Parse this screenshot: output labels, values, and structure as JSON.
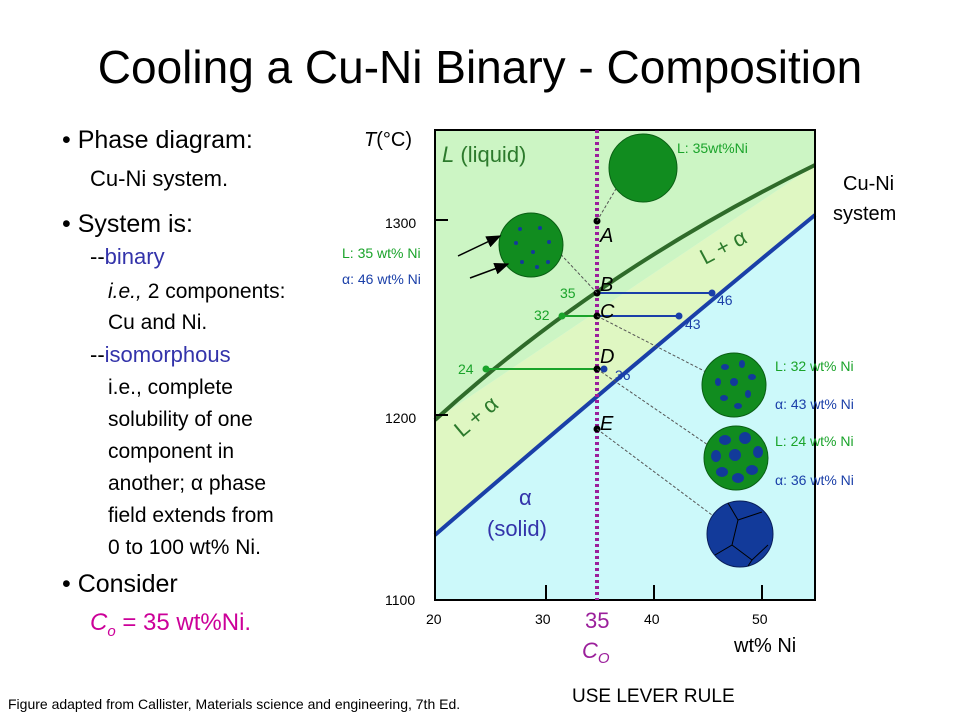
{
  "title": "Cooling a Cu-Ni Binary - Composition",
  "left": {
    "b1": "• Phase diagram:",
    "b1_sub": "Cu-Ni system.",
    "b2": "• System is:",
    "binary_dash": "--",
    "binary_word": "binary",
    "binary_ie_pre": "i.e.,",
    "binary_ie_rest": " 2 components:",
    "binary_line2": "Cu and Ni.",
    "iso_dash": "--",
    "iso_word": "isomorphous",
    "iso_lines": [
      "i.e., complete",
      "solubility of one",
      "component in",
      "another; α phase",
      "field extends from",
      "0 to 100 wt% Ni."
    ],
    "b3": "• Consider",
    "co_text": "C",
    "co_sub": "o",
    "co_rest": " = 35 wt%Ni."
  },
  "chart_data": {
    "type": "phase-diagram",
    "system_label": [
      "Cu-Ni",
      "system"
    ],
    "ylabel_T": "T",
    "ylabel_unit": "(°C)",
    "xlabel": "wt% Ni",
    "xlim": [
      20,
      50
    ],
    "ylim": [
      1100,
      1330
    ],
    "x_ticks": [
      "20",
      "30",
      "40",
      "50"
    ],
    "y_ticks": [
      "1300",
      "1200",
      "1100"
    ],
    "composition_line": 35,
    "co_label": "35",
    "co_symbol": "C",
    "co_sub": "O",
    "regions": {
      "liquid_label_italic": "L",
      "liquid_label_rest": " (liquid)",
      "l_alpha_upper": "L + α",
      "l_alpha_lower": "L + α",
      "solid_alpha": "α",
      "solid_label": "(solid)"
    },
    "points": [
      "A",
      "B",
      "C",
      "D",
      "E"
    ],
    "tie_lines": [
      {
        "point": "B",
        "left_value": "35",
        "right_value": "46"
      },
      {
        "point": "C",
        "left_value": "32",
        "right_value": "43"
      },
      {
        "point": "D",
        "left_value": "24",
        "right_value": "36"
      }
    ],
    "annotations": {
      "top_right": "L: 35wt%Ni",
      "left_l": "L: 35 wt% Ni",
      "left_a": "α: 46 wt% Ni",
      "right_c_l": "L: 32 wt% Ni",
      "right_c_a": "α: 43 wt% Ni",
      "right_d_l": "L: 24 wt% Ni",
      "right_d_a": "α: 36 wt% Ni"
    },
    "colors": {
      "liquid_region": "#ccf5c4",
      "solid_region": "#ccf9fa",
      "liquidus": "#2f6b2a",
      "solidus": "#1a3fa8",
      "grain_green": "#118c1f",
      "alpha_blue": "#123a9a",
      "co_line": "#9b1f9b",
      "tie_green": "#1aa32a"
    }
  },
  "footer": "Figure adapted from Callister, Materials science and engineering, 7th Ed.",
  "lever_rule": "USE LEVER RULE"
}
